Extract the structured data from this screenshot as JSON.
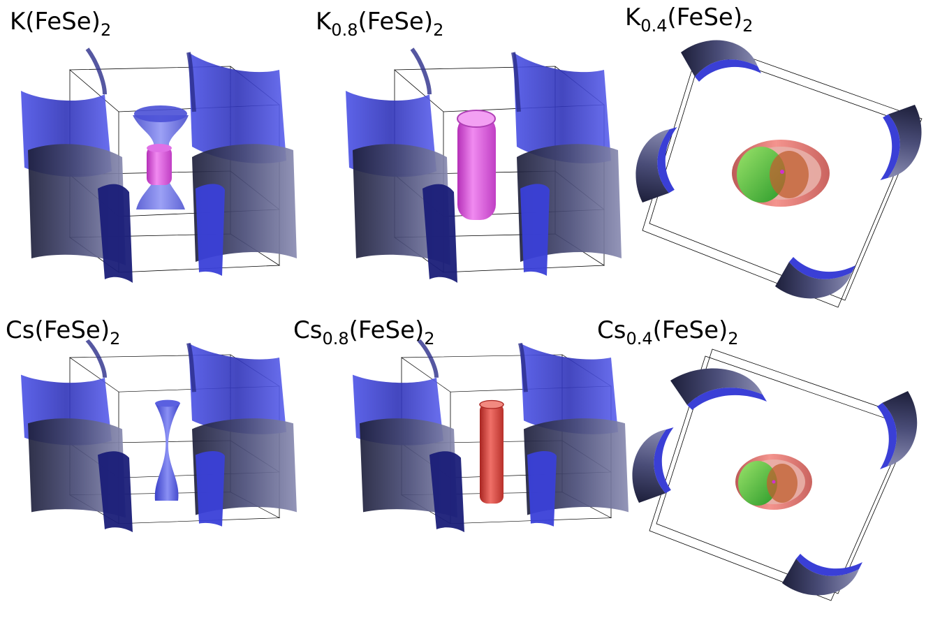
{
  "panels": [
    {
      "base": "K",
      "sub": "",
      "tail": "(FeSe)",
      "tail_sub": "2"
    },
    {
      "base": "K",
      "sub": "0.8",
      "tail": "(FeSe)",
      "tail_sub": "2"
    },
    {
      "base": "K",
      "sub": "0.4",
      "tail": "(FeSe)",
      "tail_sub": "2"
    },
    {
      "base": "Cs",
      "sub": "",
      "tail": "(FeSe)",
      "tail_sub": "2"
    },
    {
      "base": "Cs",
      "sub": "0.8",
      "tail": "(FeSe)",
      "tail_sub": "2"
    },
    {
      "base": "Cs",
      "sub": "0.4",
      "tail": "(FeSe)",
      "tail_sub": "2"
    }
  ],
  "colors": {
    "sheet_blue": "#3a3fd6",
    "sheet_dark": "#2a2c55",
    "pocket_magenta": "#d552d8",
    "pocket_red": "#d8403a",
    "pocket_green": "#44c23a",
    "edge": "#000000"
  }
}
